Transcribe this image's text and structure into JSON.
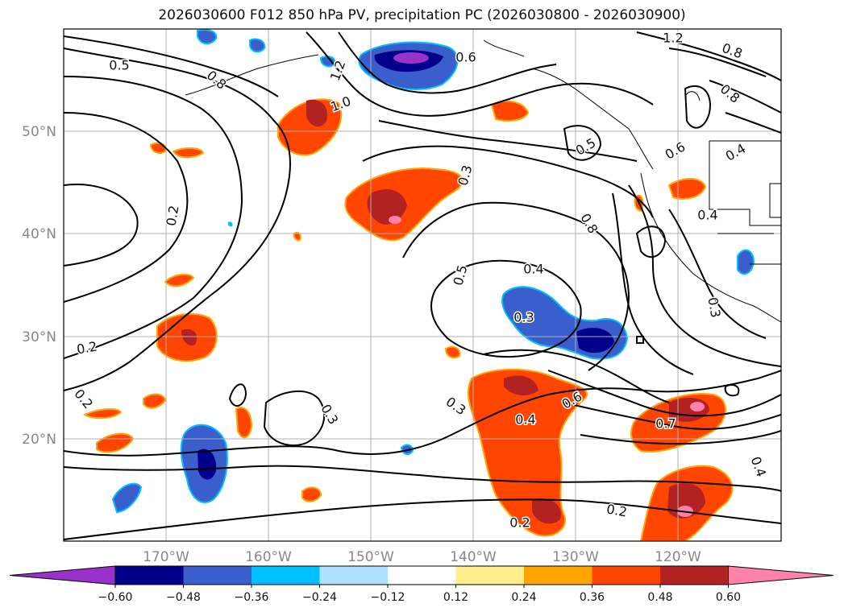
{
  "title": "2026030600 F012 850 hPa PV, precipitation PC (2026030800 - 2026030900)",
  "map": {
    "lat_ticks": [
      "50°N",
      "40°N",
      "30°N",
      "20°N"
    ],
    "lon_ticks": [
      "170°W",
      "160°W",
      "150°W",
      "140°W",
      "130°W",
      "120°W"
    ],
    "gridlines": true,
    "coastlines": true
  },
  "contour_labels": [
    "0.5",
    "0.8",
    "1.2",
    "1.0",
    "0.6",
    "0.2",
    "0.2",
    "0.2",
    "0.3",
    "0.3",
    "0.5",
    "0.4",
    "0.3",
    "0.4",
    "0.6",
    "0.3",
    "0.4",
    "0.7",
    "0.2",
    "0.2",
    "0.4",
    "1.2",
    "0.8",
    "0.8",
    "0.5",
    "0.4",
    "0.8",
    "0.3",
    "0.6"
  ],
  "colorbar": {
    "ticks": [
      "−0.60",
      "−0.48",
      "−0.36",
      "−0.24",
      "−0.12",
      "0.12",
      "0.24",
      "0.36",
      "0.48",
      "0.60"
    ],
    "colors": [
      "#9932cc",
      "#00008b",
      "#3a5fcd",
      "#00bfff",
      "#b0e2ff",
      "#ffffff",
      "#ffec8b",
      "#ffa500",
      "#ff4500",
      "#b22222",
      "#ff82ab"
    ],
    "extend": "both"
  }
}
